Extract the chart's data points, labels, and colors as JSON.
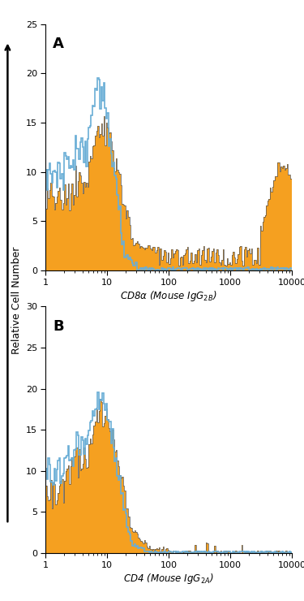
{
  "panel_A": {
    "label": "A",
    "xlabel": "CD8α (Mouse IgG$_{2B}$)",
    "ylim": [
      0,
      25
    ],
    "yticks": [
      0,
      5,
      10,
      15,
      20,
      25
    ],
    "xlim": [
      1,
      10000
    ]
  },
  "panel_B": {
    "label": "B",
    "xlabel": "CD4 (Mouse IgG$_{2A}$)",
    "ylim": [
      0,
      30
    ],
    "yticks": [
      0,
      5,
      10,
      15,
      20,
      25,
      30
    ],
    "xlim": [
      1,
      10000
    ]
  },
  "ylabel": "Relative Cell Number",
  "orange_color": "#F5A020",
  "blue_color": "#6AAED6",
  "outline_color": "#555555",
  "background_color": "#FFFFFF",
  "fig_background": "#FFFFFF"
}
